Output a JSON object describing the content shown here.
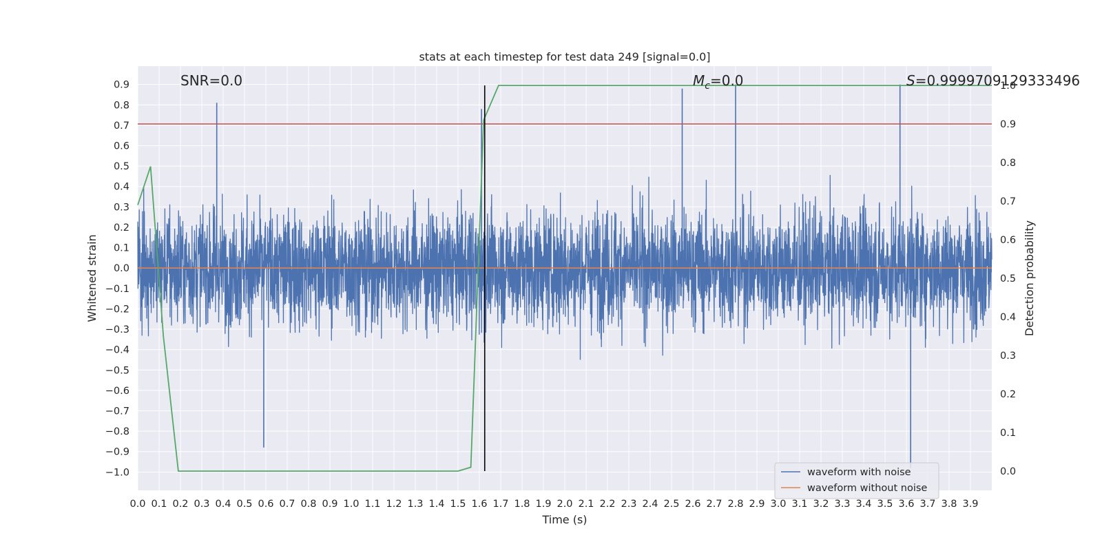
{
  "chart_data": {
    "type": "line",
    "title": "stats at each timestep for test data 249 [signal=0.0]",
    "xlabel": "Time (s)",
    "ylabel": "Whitened strain",
    "ylabel_right": "Detection probability",
    "xlim": [
      0.0,
      4.0
    ],
    "ylim": [
      -1.09,
      0.99
    ],
    "ylim_right": [
      -0.05,
      1.05
    ],
    "x_ticks": [
      "0.0",
      "0.1",
      "0.2",
      "0.3",
      "0.4",
      "0.5",
      "0.6",
      "0.7",
      "0.8",
      "0.9",
      "1.0",
      "1.1",
      "1.2",
      "1.3",
      "1.4",
      "1.5",
      "1.6",
      "1.7",
      "1.8",
      "1.9",
      "2.0",
      "2.1",
      "2.2",
      "2.3",
      "2.4",
      "2.5",
      "2.6",
      "2.7",
      "2.8",
      "2.9",
      "3.0",
      "3.1",
      "3.2",
      "3.3",
      "3.4",
      "3.5",
      "3.6",
      "3.7",
      "3.8",
      "3.9"
    ],
    "y_ticks": [
      "0.9",
      "0.8",
      "0.7",
      "0.6",
      "0.5",
      "0.4",
      "0.3",
      "0.2",
      "0.1",
      "0.0",
      "−0.1",
      "−0.2",
      "−0.3",
      "−0.4",
      "−0.5",
      "−0.6",
      "−0.7",
      "−0.8",
      "−0.9",
      "−1.0"
    ],
    "y_tick_values": [
      0.9,
      0.8,
      0.7,
      0.6,
      0.5,
      0.4,
      0.3,
      0.2,
      0.1,
      0.0,
      -0.1,
      -0.2,
      -0.3,
      -0.4,
      -0.5,
      -0.6,
      -0.7,
      -0.8,
      -0.9,
      -1.0
    ],
    "y_right_ticks": [
      "1.0",
      "0.9",
      "0.8",
      "0.7",
      "0.6",
      "0.5",
      "0.4",
      "0.3",
      "0.2",
      "0.1",
      "0.0"
    ],
    "y_right_tick_values": [
      1.0,
      0.9,
      0.8,
      0.7,
      0.6,
      0.5,
      0.4,
      0.3,
      0.2,
      0.1,
      0.0
    ],
    "grid": true,
    "legend_placement": "lower-right",
    "series": [
      {
        "name": "waveform with noise",
        "color": "#4c72b0",
        "axis": "left",
        "description_range": [
          -0.98,
          0.9
        ],
        "peaks": [
          {
            "x": 0.37,
            "y": 0.81
          },
          {
            "x": 0.59,
            "y": -0.88
          },
          {
            "x": 1.61,
            "y": 0.78
          },
          {
            "x": 2.55,
            "y": 0.88
          },
          {
            "x": 2.8,
            "y": 0.9
          },
          {
            "x": 3.57,
            "y": 0.9
          },
          {
            "x": 3.62,
            "y": -0.98
          }
        ]
      },
      {
        "name": "waveform without noise",
        "color": "#dd8452",
        "axis": "left",
        "x": [
          0.0,
          4.0
        ],
        "y": [
          0.0,
          0.0
        ]
      },
      {
        "name": "",
        "color": "#55a868",
        "axis": "right",
        "x": [
          0.0,
          0.06,
          0.12,
          0.19,
          0.25,
          1.5,
          1.56,
          1.62,
          1.69,
          4.0
        ],
        "y": [
          0.69,
          0.79,
          0.35,
          0.0,
          0.0,
          0.0,
          0.01,
          0.91,
          1.0,
          1.0
        ]
      }
    ],
    "threshold_line": {
      "axis": "right",
      "y": 0.9,
      "color": "#c44e52"
    },
    "vertical_line": {
      "x": 1.625,
      "color": "#000000"
    },
    "annotations": {
      "snr": "SNR=0.0",
      "mc_symbol": "M",
      "mc_sub": "c",
      "mc_value": "=0.0",
      "s_symbol": "S",
      "s_value": "=0.9999709129333496"
    }
  }
}
